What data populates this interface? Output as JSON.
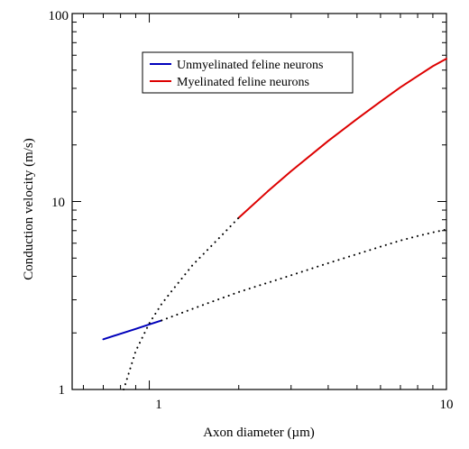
{
  "chart_data": {
    "type": "line",
    "title": "",
    "xlabel": "Axon diameter (µm)",
    "ylabel": "Conduction velocity (m/s)",
    "xscale": "log",
    "yscale": "log",
    "xlim": [
      0.55,
      10
    ],
    "ylim": [
      1,
      100
    ],
    "x_tick_labels": [
      "1",
      "10"
    ],
    "y_tick_labels": [
      "1",
      "10",
      "100"
    ],
    "grid": false,
    "legend_position": "top-center",
    "series": [
      {
        "name": "Unmyelinated feline neurons",
        "color": "#0000bb",
        "style": "solid",
        "points": [
          [
            0.7,
            1.85
          ],
          [
            0.8,
            1.98
          ],
          [
            0.9,
            2.1
          ],
          [
            1.0,
            2.22
          ],
          [
            1.1,
            2.33
          ]
        ]
      },
      {
        "name": "Myelinated feline neurons",
        "color": "#dd0000",
        "style": "solid",
        "points": [
          [
            2.0,
            8.2
          ],
          [
            2.5,
            11.3
          ],
          [
            3.0,
            14.5
          ],
          [
            4.0,
            21.0
          ],
          [
            5.0,
            27.5
          ],
          [
            6.0,
            34.0
          ],
          [
            7.0,
            40.5
          ],
          [
            8.0,
            46.5
          ],
          [
            9.0,
            52.5
          ],
          [
            10.0,
            57.5
          ]
        ]
      },
      {
        "name": "",
        "color": "#000000",
        "style": "dotted",
        "points": [
          [
            1.1,
            2.33
          ],
          [
            1.5,
            2.8
          ],
          [
            2.0,
            3.3
          ],
          [
            3.0,
            4.05
          ],
          [
            4.0,
            4.7
          ],
          [
            5.0,
            5.25
          ],
          [
            6.0,
            5.75
          ],
          [
            7.0,
            6.2
          ],
          [
            8.0,
            6.55
          ],
          [
            9.0,
            6.85
          ],
          [
            10.0,
            7.1
          ]
        ]
      },
      {
        "name": "",
        "color": "#000000",
        "style": "dotted",
        "points": [
          [
            0.82,
            1.0
          ],
          [
            0.9,
            1.6
          ],
          [
            1.0,
            2.25
          ],
          [
            1.1,
            2.85
          ],
          [
            1.2,
            3.4
          ],
          [
            1.4,
            4.6
          ],
          [
            1.6,
            5.7
          ],
          [
            1.8,
            6.9
          ],
          [
            2.0,
            8.2
          ]
        ]
      }
    ]
  }
}
